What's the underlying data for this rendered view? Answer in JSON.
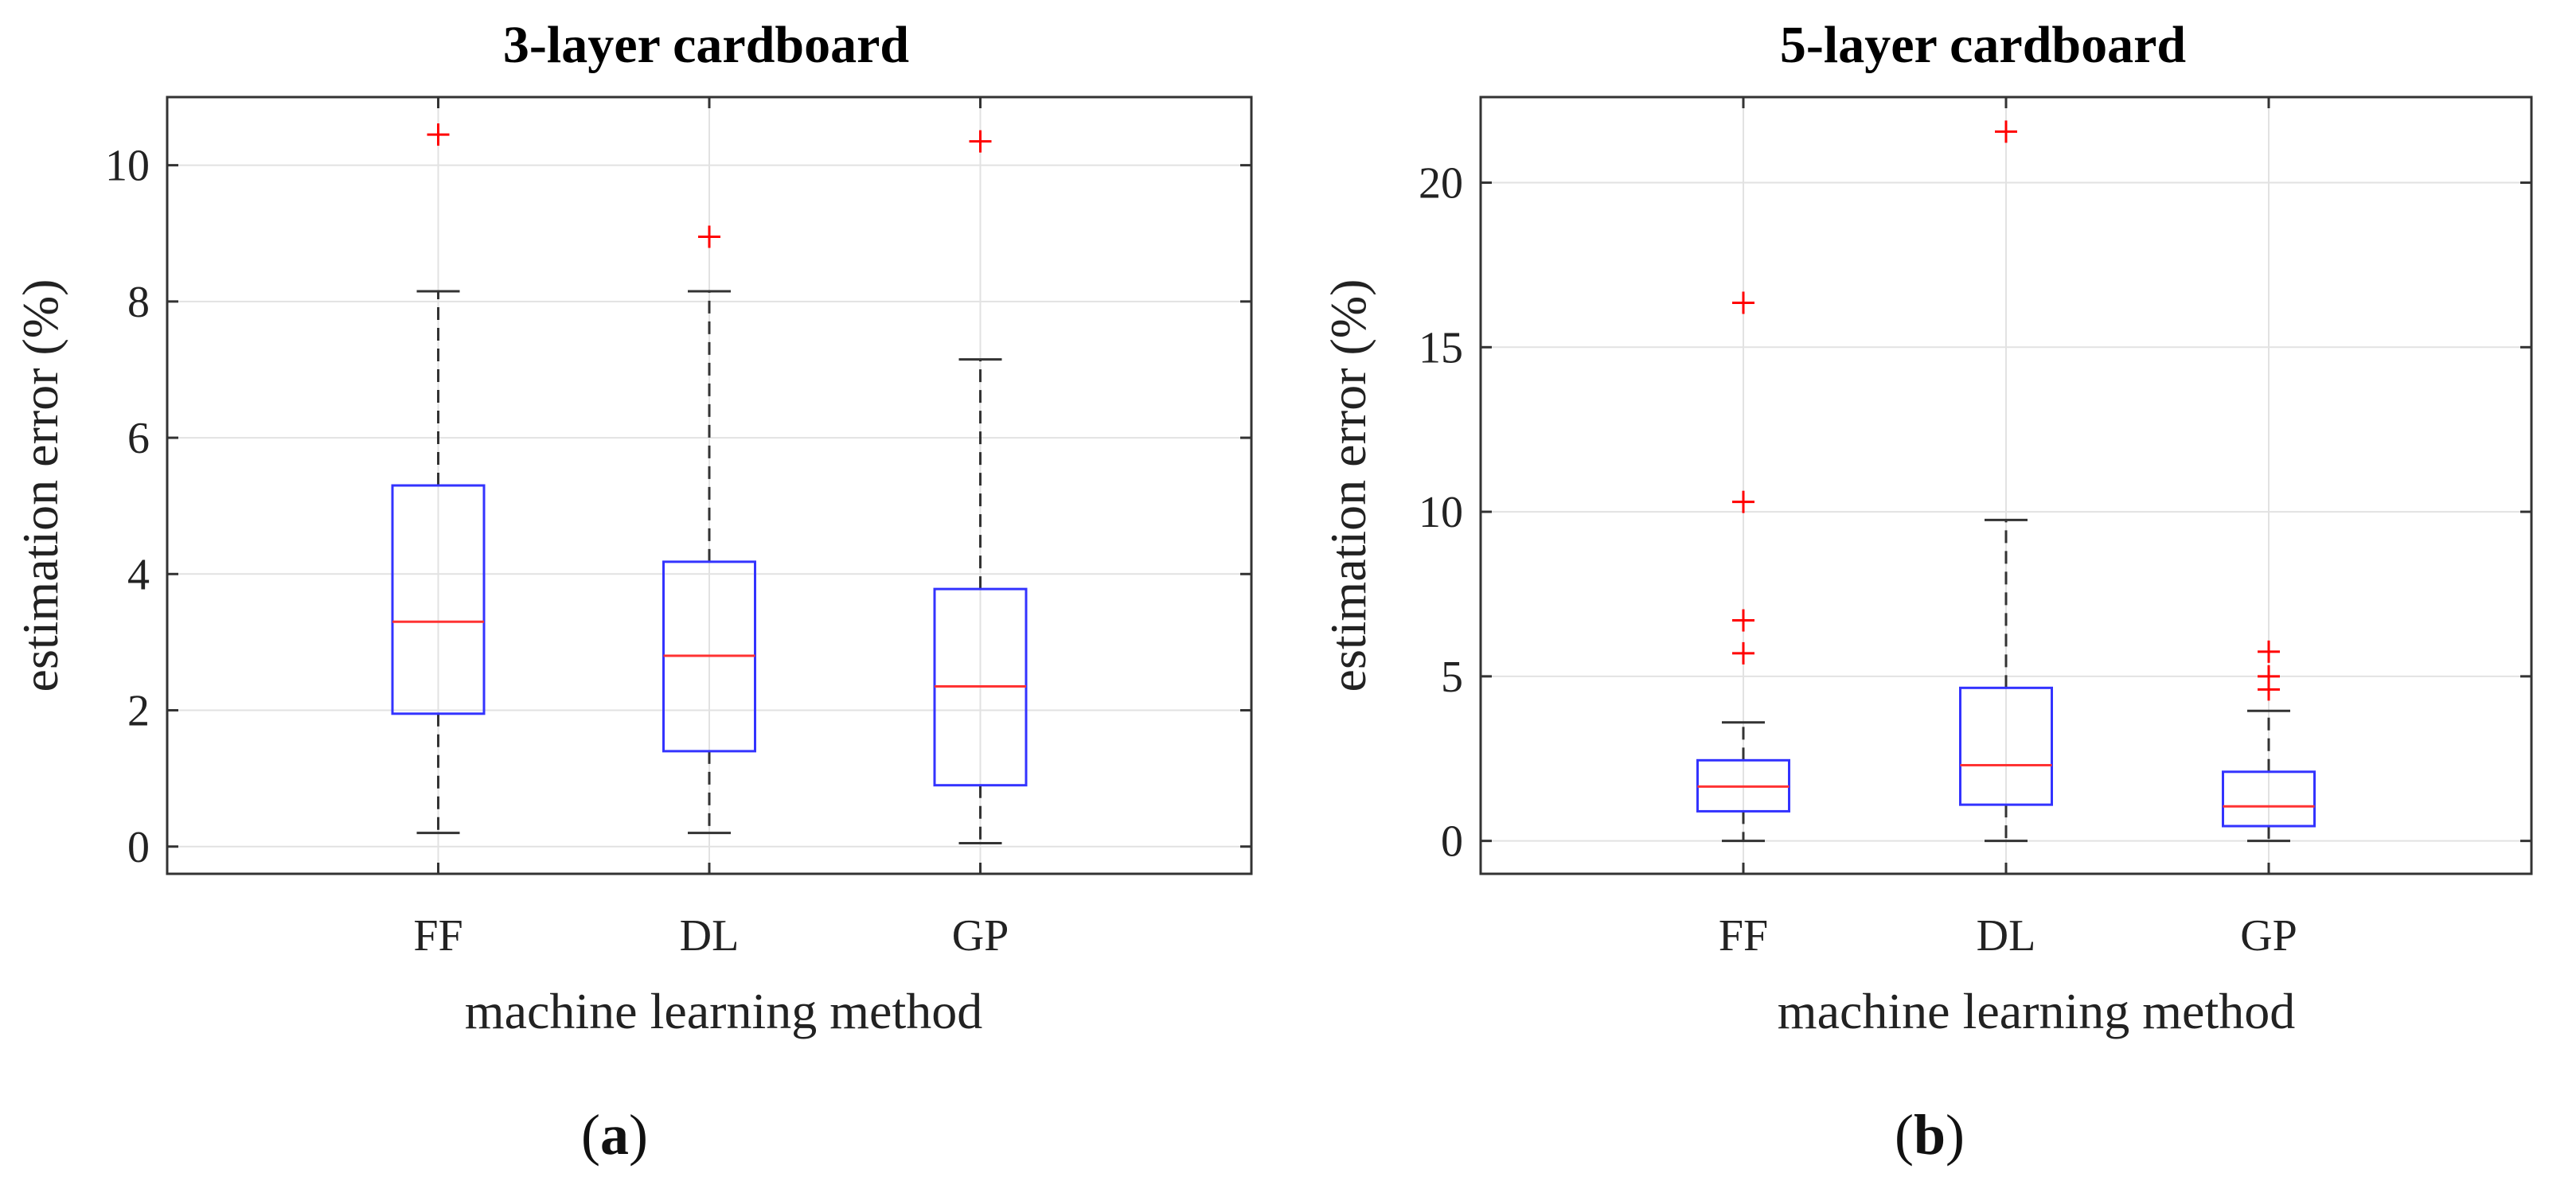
{
  "chart_data": [
    {
      "type": "box",
      "title": "3-layer cardboard",
      "xlabel": "machine learning method",
      "ylabel": "estimation error (%)",
      "categories": [
        "FF",
        "DL",
        "GP"
      ],
      "ylim": [
        -0.4,
        11
      ],
      "yticks": [
        0,
        2,
        4,
        6,
        8,
        10
      ],
      "grid": true,
      "caption_letter": "a",
      "boxes": [
        {
          "label": "FF",
          "whisker_low": 0.2,
          "q1": 1.95,
          "median": 3.3,
          "q3": 5.3,
          "whisker_high": 8.15,
          "outliers": [
            10.45
          ]
        },
        {
          "label": "DL",
          "whisker_low": 0.2,
          "q1": 1.4,
          "median": 2.8,
          "q3": 4.18,
          "whisker_high": 8.15,
          "outliers": [
            8.95
          ]
        },
        {
          "label": "GP",
          "whisker_low": 0.05,
          "q1": 0.9,
          "median": 2.35,
          "q3": 3.78,
          "whisker_high": 7.15,
          "outliers": [
            10.35
          ]
        }
      ]
    },
    {
      "type": "box",
      "title": "5-layer cardboard",
      "xlabel": "machine learning method",
      "ylabel": "estimation error (%)",
      "categories": [
        "FF",
        "DL",
        "GP"
      ],
      "ylim": [
        -1,
        22.6
      ],
      "yticks": [
        0,
        5,
        10,
        15,
        20
      ],
      "grid": true,
      "caption_letter": "b",
      "boxes": [
        {
          "label": "FF",
          "whisker_low": 0.0,
          "q1": 0.9,
          "median": 1.65,
          "q3": 2.45,
          "whisker_high": 3.6,
          "outliers": [
            5.7,
            6.7,
            10.3,
            16.35
          ]
        },
        {
          "label": "DL",
          "whisker_low": 0.0,
          "q1": 1.1,
          "median": 2.3,
          "q3": 4.65,
          "whisker_high": 9.75,
          "outliers": [
            21.55
          ]
        },
        {
          "label": "GP",
          "whisker_low": 0.0,
          "q1": 0.45,
          "median": 1.05,
          "q3": 2.1,
          "whisker_high": 3.95,
          "outliers": [
            4.6,
            5.0,
            5.75
          ]
        }
      ]
    }
  ],
  "colors": {
    "box": "#3333ff",
    "median": "#ff3333",
    "outlier": "#ff0000",
    "whisker": "#333333",
    "grid": "#e2e2e2",
    "frame": "#333333"
  }
}
